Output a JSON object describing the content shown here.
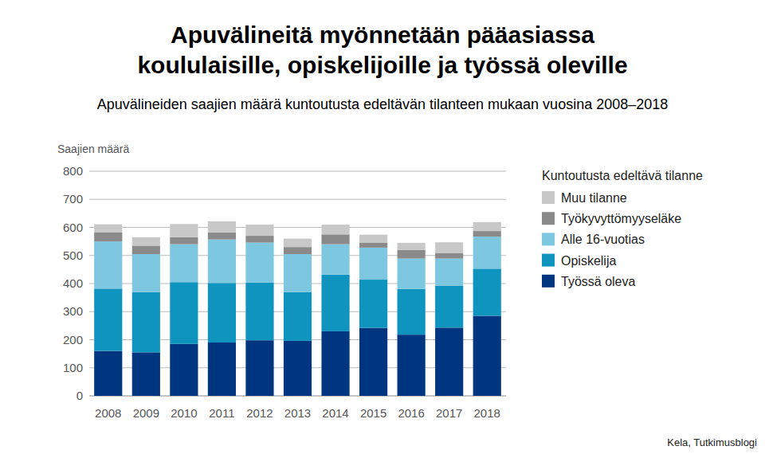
{
  "chart_data": {
    "type": "bar",
    "stacked": true,
    "title": [
      "Apuvälineitä myönnetään pääasiassa",
      "koululaisille, opiskelijoille ja työssä oleville"
    ],
    "subtitle": "Apuvälineiden saajien määrä kuntoutusta edeltävän tilanteen mukaan vuosina 2008–2018",
    "y_label": "Saajien määrä",
    "legend_title": "Kuntoutusta edeltävä tilanne",
    "source": "Kela, Tutkimusblogi",
    "legend": "right",
    "grid": true,
    "categories": [
      "2008",
      "2009",
      "2010",
      "2011",
      "2012",
      "2013",
      "2014",
      "2015",
      "2016",
      "2017",
      "2018"
    ],
    "ylim": [
      0,
      800
    ],
    "yticks": [
      0,
      100,
      200,
      300,
      400,
      500,
      600,
      700,
      800
    ],
    "series": [
      {
        "name": "Työssä oleva",
        "color": "#003580",
        "values": [
          160,
          155,
          185,
          190,
          198,
          196,
          230,
          242,
          218,
          243,
          285
        ]
      },
      {
        "name": "Opiskelija",
        "color": "#0f94c0",
        "values": [
          222,
          215,
          220,
          212,
          205,
          174,
          202,
          172,
          163,
          150,
          168
        ]
      },
      {
        "name": "Alle 16-vuotias",
        "color": "#7dc8e0",
        "values": [
          168,
          135,
          135,
          155,
          143,
          135,
          108,
          114,
          108,
          96,
          114
        ]
      },
      {
        "name": "Työkyvyttömyyseläke",
        "color": "#8a8a8a",
        "values": [
          33,
          30,
          25,
          25,
          24,
          25,
          35,
          18,
          31,
          20,
          20
        ]
      },
      {
        "name": "Muu tilanne",
        "color": "#c8c8c8",
        "values": [
          28,
          30,
          47,
          40,
          40,
          30,
          35,
          28,
          25,
          38,
          32
        ]
      }
    ]
  }
}
